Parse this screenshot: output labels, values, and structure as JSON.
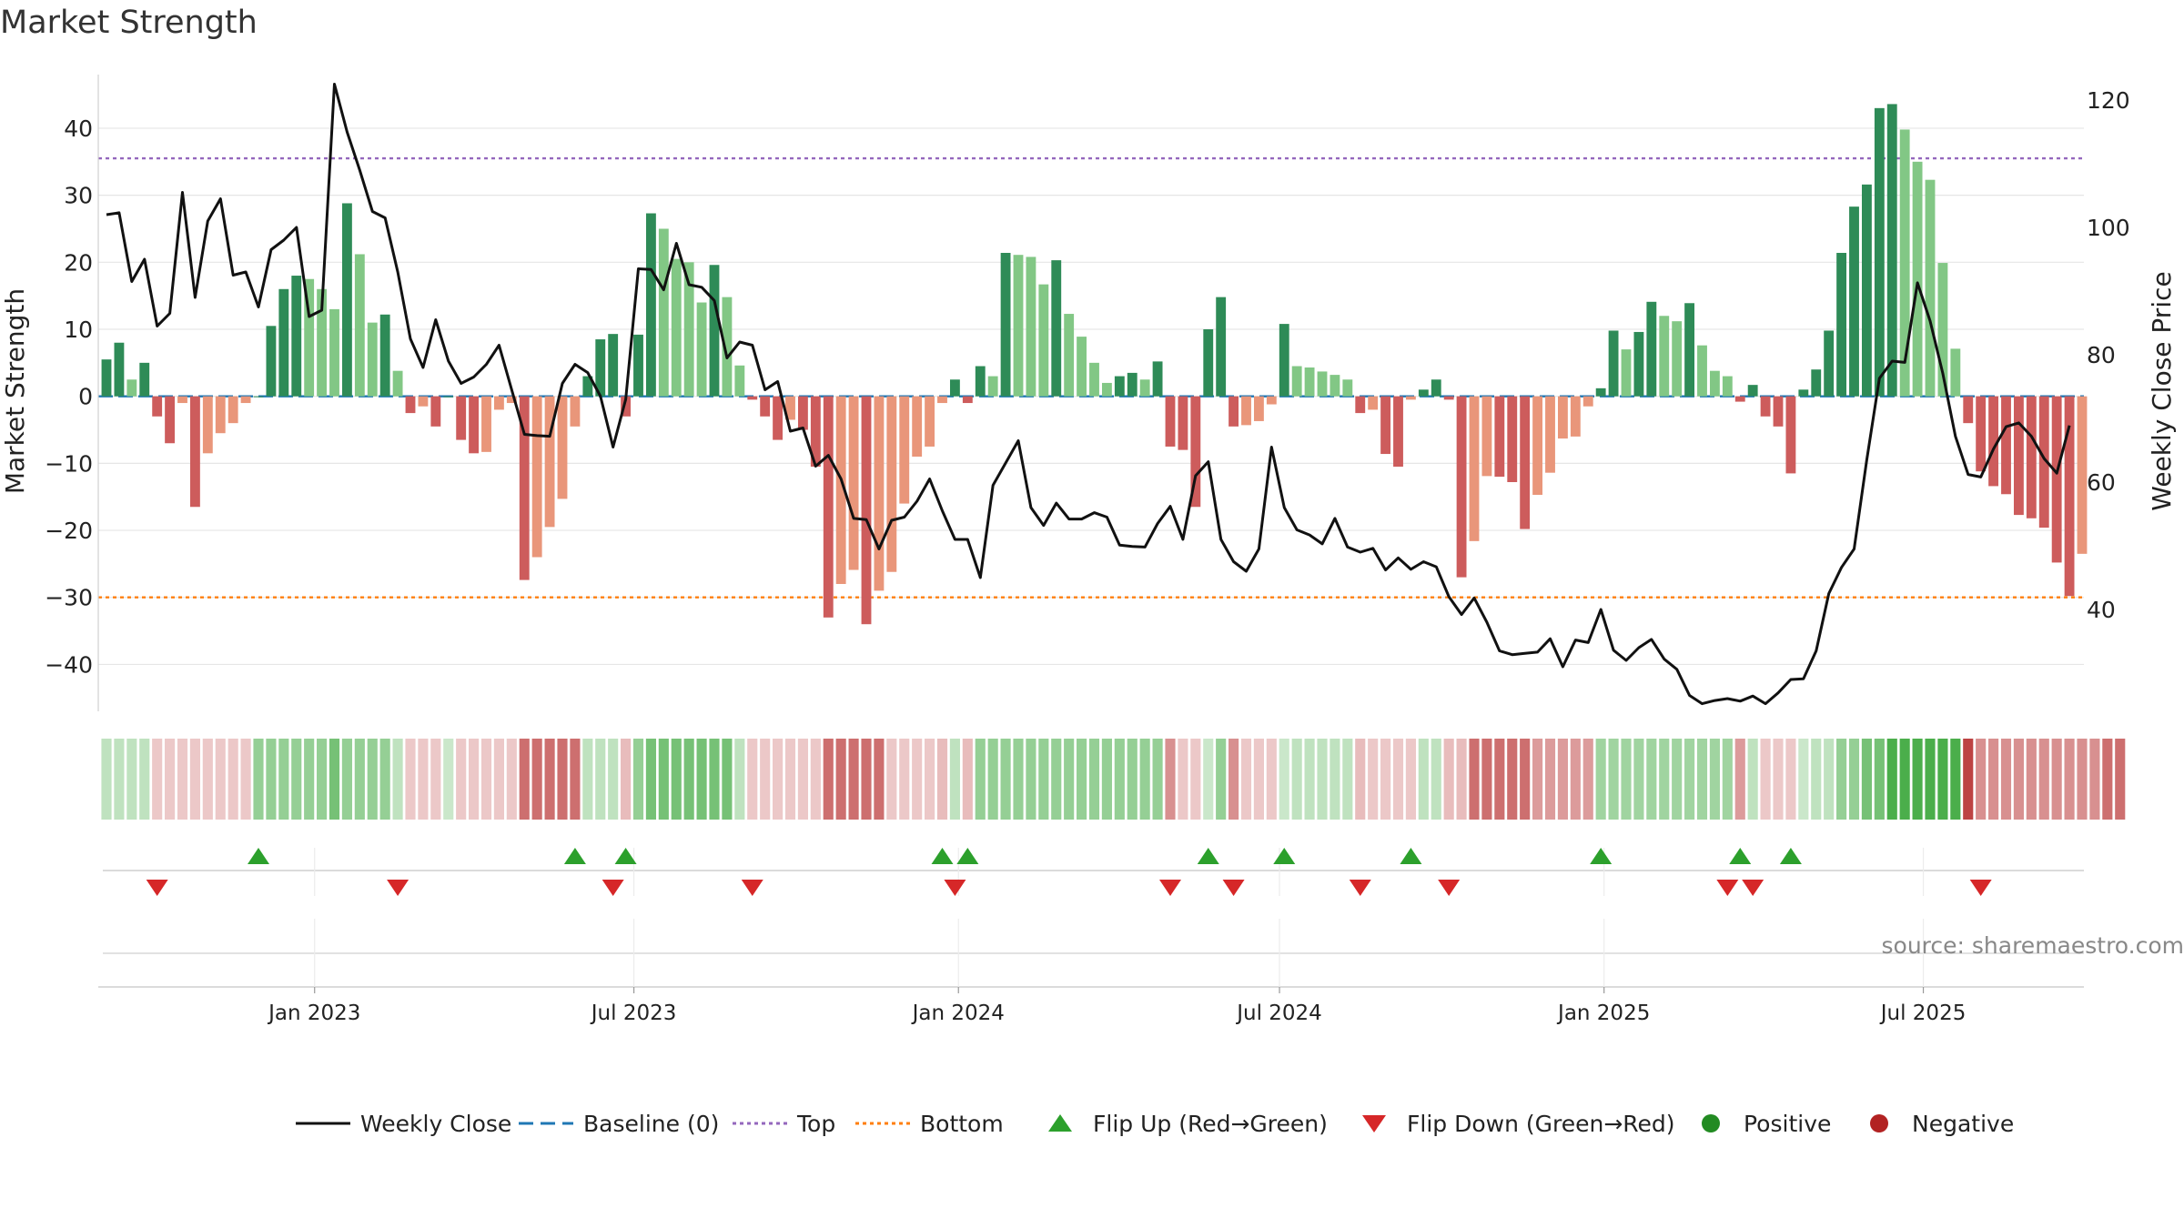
{
  "page": {
    "title": "Market Strength",
    "source": "source: sharemaestro.com"
  },
  "chart_data": {
    "type": "bar",
    "title": "Market Strength",
    "ylabel": "Market Strength",
    "y2label": "Weekly Close Price",
    "ylim": [
      -47,
      48
    ],
    "y2lim": [
      24,
      124
    ],
    "yticks": [
      40,
      30,
      20,
      10,
      0,
      -10,
      -20,
      -30,
      -40
    ],
    "y2ticks": [
      120,
      100,
      80,
      60,
      40
    ],
    "top_level": 35.5,
    "bottom_level": -30,
    "x_start": "2022-09-05",
    "x_end": "2025-09-29",
    "x_tick_labels": [
      "Jan 2023",
      "Jul 2023",
      "Jan 2024",
      "Jul 2024",
      "Jan 2025",
      "Jul 2025"
    ],
    "x_tick_dates": [
      "2023-01-01",
      "2023-07-01",
      "2024-01-01",
      "2024-07-01",
      "2025-01-01",
      "2025-07-01"
    ],
    "colors": {
      "pos_strong": "#2e8b57",
      "pos_weak": "#82c785",
      "neg_strong": "#cd5c5c",
      "neg_weak": "#e9967a",
      "close": "#111111",
      "baseline": "#1f77b4",
      "top": "#9467bd",
      "bottom": "#ff7f0e",
      "flip_up": "#2ca02c",
      "flip_down": "#d62728",
      "positive": "#228b22",
      "negative": "#b22222"
    },
    "strength": [
      5.5,
      8,
      2.5,
      5,
      -3,
      -7,
      -1,
      -16.5,
      -8.5,
      -5.5,
      -4,
      -1,
      0,
      10.5,
      16,
      18,
      17.5,
      16,
      13,
      28.8,
      21.2,
      11,
      12.2,
      3.8,
      -2.5,
      -1.5,
      -4.5,
      0,
      -6.5,
      -8.5,
      -8.3,
      -2,
      -1,
      -27.4,
      -24,
      -19.5,
      -15.3,
      -4.5,
      3,
      8.5,
      9.3,
      -3,
      9.2,
      27.3,
      25,
      20.5,
      20,
      14,
      19.6,
      14.8,
      4.6,
      -0.5,
      -3,
      -6.5,
      -3.5,
      -5,
      -10.5,
      -33,
      -28,
      -25.9,
      -34,
      -29,
      -26.2,
      -16,
      -9,
      -7.5,
      -1,
      2.5,
      -1,
      4.5,
      3,
      21.4,
      21.1,
      20.8,
      16.7,
      20.3,
      12.3,
      8.9,
      5,
      2,
      3,
      3.5,
      2.5,
      5.2,
      -7.5,
      -8,
      -16.5,
      10,
      14.8,
      -4.5,
      -4.3,
      -3.7,
      -1.2,
      10.8,
      4.5,
      4.3,
      3.7,
      3.2,
      2.5,
      -2.5,
      -2,
      -8.6,
      -10.5,
      -0.5,
      1,
      2.5,
      -0.5,
      -27,
      -21.6,
      -11.9,
      -12,
      -12.8,
      -19.8,
      -14.7,
      -11.4,
      -6.3,
      -6,
      -1.5,
      1.2,
      9.8,
      7,
      9.6,
      14.1,
      12,
      11.2,
      13.9,
      7.6,
      3.8,
      3,
      -0.8,
      1.7,
      -3,
      -4.5,
      -11.5,
      1,
      4,
      9.8,
      21.4,
      28.3,
      31.6,
      43,
      43.6,
      39.8,
      35,
      32.3,
      19.9,
      7.1,
      -4,
      -11.2,
      -13.4,
      -14.6,
      -17.7,
      -18.2,
      -19.6,
      -24.8,
      -29.8,
      -23.5
    ],
    "close": [
      102,
      102.3,
      91.5,
      95,
      84.5,
      86.5,
      105.5,
      89,
      101,
      104.5,
      92.5,
      93,
      87.5,
      96.5,
      98,
      100,
      86,
      87,
      122.5,
      115,
      109,
      102.5,
      101.5,
      93,
      82.5,
      78,
      85.5,
      79,
      75.5,
      76.5,
      78.5,
      81.5,
      74.5,
      67.5,
      67.3,
      67.2,
      75.5,
      78.5,
      77.2,
      73.5,
      65.5,
      73,
      93.5,
      93.4,
      90.2,
      97.5,
      91,
      90.6,
      88.5,
      79.5,
      82,
      81.5,
      74.5,
      75.8,
      68,
      68.5,
      62.5,
      64.2,
      60.5,
      54.3,
      54.1,
      49.5,
      54,
      54.5,
      57,
      60.5,
      55.5,
      51,
      51,
      45,
      59.5,
      63,
      66.5,
      56,
      53.2,
      56.7,
      54.2,
      54.2,
      55.2,
      54.5,
      50.1,
      49.9,
      49.8,
      53.5,
      56.2,
      51,
      61,
      63.2,
      51,
      47.5,
      46,
      49.5,
      65.5,
      56,
      52.5,
      51.7,
      50.3,
      54.3,
      49.8,
      49,
      49.6,
      46.2,
      48.1,
      46.3,
      47.5,
      46.7,
      42,
      39.2,
      41.8,
      38,
      33.5,
      32.9,
      33.1,
      33.3,
      35.4,
      31,
      35.2,
      34.8,
      40,
      33.6,
      32,
      34,
      35.3,
      32.2,
      30.6,
      26.5,
      25.2,
      25.7,
      26,
      25.6,
      26.4,
      25.2,
      26.9,
      29,
      29.1,
      33.5,
      42.5,
      46.6,
      49.5,
      63.5,
      76.3,
      79,
      78.8,
      91.3,
      85.3,
      77.1,
      67.2,
      61.2,
      60.8,
      65.2,
      68.7,
      69.3,
      67.2,
      63.7,
      61.4,
      68.9
    ],
    "regime_alpha": [
      0.3,
      0.3,
      0.3,
      0.3,
      0.25,
      0.25,
      0.25,
      0.25,
      0.25,
      0.25,
      0.25,
      0.25,
      0.5,
      0.5,
      0.5,
      0.5,
      0.5,
      0.5,
      0.65,
      0.5,
      0.5,
      0.5,
      0.5,
      0.3,
      0.25,
      0.25,
      0.25,
      0.25,
      0.25,
      0.25,
      0.25,
      0.25,
      0.25,
      0.65,
      0.65,
      0.65,
      0.65,
      0.65,
      0.3,
      0.3,
      0.3,
      0.3,
      0.5,
      0.65,
      0.65,
      0.65,
      0.65,
      0.65,
      0.65,
      0.65,
      0.3,
      0.25,
      0.25,
      0.25,
      0.25,
      0.25,
      0.25,
      0.65,
      0.65,
      0.65,
      0.65,
      0.65,
      0.25,
      0.25,
      0.25,
      0.25,
      0.3,
      0.3,
      0.3,
      0.5,
      0.5,
      0.5,
      0.5,
      0.5,
      0.5,
      0.5,
      0.5,
      0.5,
      0.5,
      0.5,
      0.5,
      0.5,
      0.5,
      0.5,
      0.5,
      0.25,
      0.25,
      0.25,
      0.5,
      0.5,
      0.25,
      0.25,
      0.25,
      0.25,
      0.3,
      0.3,
      0.3,
      0.3,
      0.3,
      0.3,
      0.25,
      0.25,
      0.25,
      0.25,
      0.3,
      0.3,
      0.3,
      0.3,
      0.65,
      0.65,
      0.65,
      0.65,
      0.65,
      0.45,
      0.45,
      0.45,
      0.45,
      0.45,
      0.45,
      0.45,
      0.45,
      0.45,
      0.45,
      0.45,
      0.45,
      0.45,
      0.45,
      0.45,
      0.45,
      0.45,
      0.3,
      0.25,
      0.25,
      0.25,
      0.25,
      0.3,
      0.3,
      0.5,
      0.5,
      0.65,
      0.65,
      0.85,
      0.85,
      0.85,
      0.85,
      0.85,
      0.85,
      0.85,
      0.5,
      0.5,
      0.5,
      0.5,
      0.5,
      0.5,
      0.5,
      0.5,
      0.5,
      0.5,
      0.65,
      0.65
    ],
    "flip_up_weeks": [
      12,
      37,
      41,
      66,
      68,
      87,
      93,
      103,
      118,
      129,
      133
    ],
    "flip_down_weeks": [
      4,
      23,
      40,
      51,
      67,
      84,
      89,
      99,
      106,
      128,
      130,
      148
    ],
    "legend": [
      "Weekly Close",
      "Baseline (0)",
      "Top",
      "Bottom",
      "Flip Up (Red→Green)",
      "Flip Down (Green→Red)",
      "Positive",
      "Negative"
    ]
  }
}
